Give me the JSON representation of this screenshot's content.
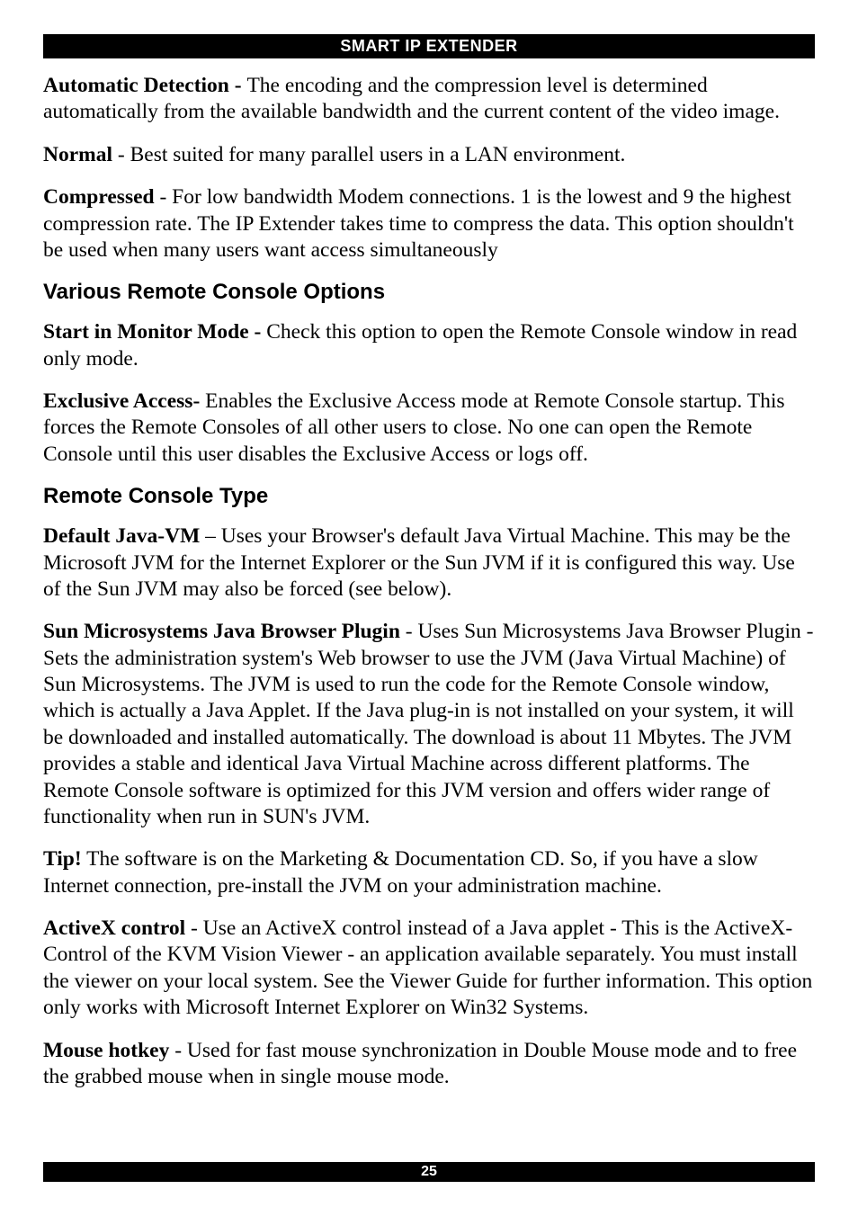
{
  "header": {
    "title": "SMART IP EXTENDER"
  },
  "paragraphs": {
    "p1_bold": "Automatic Detection - ",
    "p1_rest": "The encoding and the compression level is determined automatically from the available bandwidth and the current content of the video image.",
    "p2_bold": "Normal",
    "p2_rest": " - Best suited for many parallel users in a LAN environment.",
    "p3_bold": "Compressed",
    "p3_rest": " - For low bandwidth Modem connections. 1 is the lowest and 9 the highest compression rate. The IP Extender takes time to compress the data. This option shouldn't be used when many users want access simultaneously"
  },
  "section1": {
    "heading": "Various Remote Console Options",
    "p1_bold": "Start in Monitor Mode - ",
    "p1_rest": "Check this option to open the Remote Console window in read only mode.",
    "p2_bold": "Exclusive Access- ",
    "p2_rest": "Enables the Exclusive Access mode at Remote Console startup. This forces the Remote Consoles of all other users to close. No one can open the Remote Console until this user disables the Exclusive Access or logs off."
  },
  "section2": {
    "heading": "Remote Console Type",
    "p1_bold": "Default Java-VM",
    "p1_rest": " – Uses your Browser's default Java Virtual Machine. This may be the Microsoft JVM for the Internet Explorer or the Sun JVM if it is configured this way. Use of the Sun JVM may also be forced (see below).",
    "p2_bold": "Sun Microsystems Java Browser Plugin",
    "p2_rest": " - Uses Sun Microsystems Java Browser Plugin - Sets the administration system's Web browser to use the JVM (Java Virtual Machine) of Sun Microsystems. The JVM is used to run the code for the Remote Console window, which is actually a Java Applet. If the Java plug-in is not installed on your system, it will be downloaded and installed automatically. The download is about 11 Mbytes. The JVM provides a stable and identical Java Virtual Machine across different platforms. The Remote Console software is optimized for this JVM version and offers wider range of functionality when run in SUN's JVM.",
    "p3_bold": "Tip!",
    "p3_rest": " The software is on the Marketing & Documentation CD. So, if you have a slow Internet connection, pre-install the JVM on your administration machine.",
    "p4_bold": "ActiveX control",
    "p4_rest": " - Use an ActiveX control instead of a Java applet - This is the ActiveX-Control of the KVM Vision Viewer - an application available separately. You must install the viewer on your local system. See the Viewer Guide for further information. This option only works with Microsoft Internet Explorer on Win32 Systems.",
    "p5_bold": "Mouse hotkey",
    "p5_rest": " - Used for fast mouse synchronization in Double Mouse mode and to free the grabbed mouse when in single mouse mode."
  },
  "footer": {
    "page": "25"
  }
}
